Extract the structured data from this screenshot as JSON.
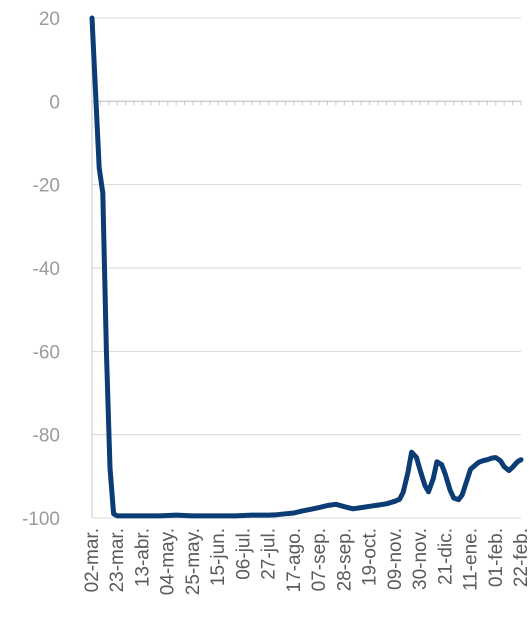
{
  "chart_data": {
    "type": "line",
    "title": "",
    "xlabel": "",
    "ylabel": "",
    "ylim": [
      -100,
      20
    ],
    "yticks": [
      20,
      0,
      -20,
      -40,
      -60,
      -80,
      -100
    ],
    "grid": true,
    "legend": "none",
    "colors": {
      "line": "#0b3c73",
      "grid": "#d9d9d9",
      "axis": "#c8c8c8",
      "ytick_text": "#9b9b9b",
      "xtick_text": "#5b5b5b"
    },
    "x_tick_labels": [
      "02-mar.",
      "23-mar.",
      "13-abr.",
      "04-may.",
      "25-may.",
      "15-jun.",
      "06-jul.",
      "27-jul.",
      "17-ago.",
      "07-sep.",
      "28-sep.",
      "19-oct.",
      "09-nov.",
      "30-nov.",
      "21-dic.",
      "11-ene.",
      "01-feb.",
      "22-feb."
    ],
    "series": [
      {
        "name": "",
        "x": [
          "02-mar.",
          "05-mar.",
          "08-mar.",
          "11-mar.",
          "14-mar.",
          "17-mar.",
          "20-mar.",
          "23-mar.",
          "30-mar.",
          "06-abr.",
          "13-abr.",
          "20-abr.",
          "27-abr.",
          "04-may.",
          "11-may.",
          "18-may.",
          "25-may.",
          "01-jun.",
          "08-jun.",
          "15-jun.",
          "22-jun.",
          "29-jun.",
          "06-jul.",
          "13-jul.",
          "20-jul.",
          "27-jul.",
          "03-ago.",
          "10-ago.",
          "17-ago.",
          "24-ago.",
          "31-ago.",
          "07-sep.",
          "14-sep.",
          "21-sep.",
          "28-sep.",
          "05-oct.",
          "12-oct.",
          "19-oct.",
          "26-oct.",
          "02-nov.",
          "09-nov.",
          "13-nov.",
          "16-nov.",
          "20-nov.",
          "23-nov.",
          "27-nov.",
          "30-nov.",
          "04-dic.",
          "07-dic.",
          "11-dic.",
          "14-dic.",
          "18-dic.",
          "21-dic.",
          "25-dic.",
          "28-dic.",
          "01-ene.",
          "04-ene.",
          "08-ene.",
          "11-ene.",
          "15-ene.",
          "18-ene.",
          "22-ene.",
          "25-ene.",
          "29-ene.",
          "01-feb.",
          "05-feb.",
          "08-feb.",
          "12-feb.",
          "15-feb.",
          "19-feb.",
          "22-feb."
        ],
        "values": [
          20,
          2,
          -16,
          -22,
          -60,
          -88,
          -99,
          -99.5,
          -99.5,
          -99.5,
          -99.5,
          -99.5,
          -99.5,
          -99.4,
          -99.3,
          -99.4,
          -99.5,
          -99.5,
          -99.5,
          -99.5,
          -99.5,
          -99.5,
          -99.4,
          -99.3,
          -99.3,
          -99.3,
          -99.2,
          -99,
          -98.8,
          -98.3,
          -97.9,
          -97.5,
          -97,
          -96.7,
          -97.3,
          -97.8,
          -97.5,
          -97.2,
          -96.9,
          -96.6,
          -96,
          -95.5,
          -93.8,
          -89,
          -84.2,
          -85.5,
          -88.5,
          -92.2,
          -93.7,
          -90.5,
          -86.5,
          -87.2,
          -89.5,
          -93.3,
          -95.2,
          -95.6,
          -94.5,
          -91,
          -88.3,
          -87.3,
          -86.6,
          -86.2,
          -86,
          -85.6,
          -85.5,
          -86.3,
          -87.7,
          -88.6,
          -87.8,
          -86.5,
          -86
        ]
      }
    ]
  }
}
